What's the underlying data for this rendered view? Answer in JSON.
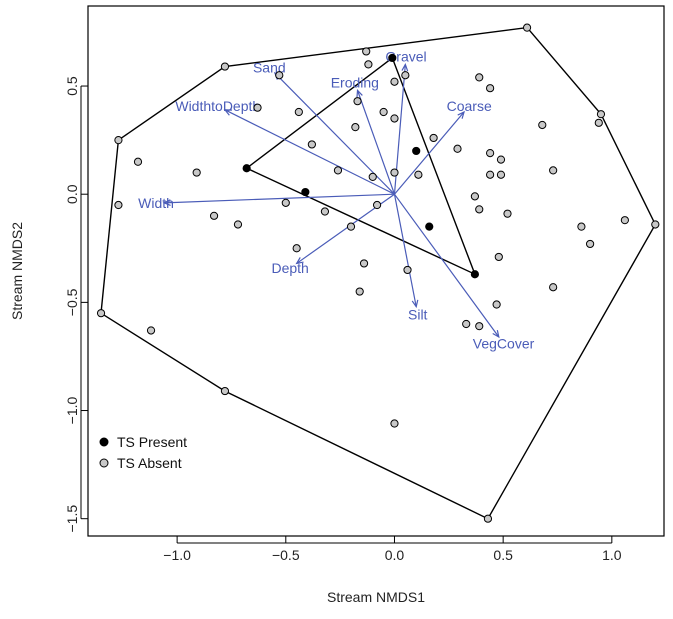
{
  "chart_data": {
    "type": "scatter",
    "title": "",
    "xlabel": "Stream NMDS1",
    "ylabel": "Stream NMDS2",
    "xlim": [
      -1.41,
      1.24
    ],
    "ylim": [
      -1.58,
      0.87
    ],
    "xticks": [
      -1.0,
      -0.5,
      0.0,
      0.5,
      1.0
    ],
    "xtick_labels": [
      "−1.0",
      "−0.5",
      "0.0",
      "0.5",
      "1.0"
    ],
    "yticks": [
      0.5,
      0.0,
      -0.5,
      -1.0,
      -1.5
    ],
    "ytick_labels": [
      "0.5",
      "0.0",
      "−0.5",
      "−1.0",
      "−1.5"
    ],
    "grid": false,
    "legend_position": "bottom-left",
    "colors": {
      "vectors": "#4a5cb8",
      "present": "#000000",
      "absent_fill": "#c8c8c8",
      "hull": "#000000"
    },
    "series": [
      {
        "name": "TS Present",
        "points": [
          [
            -0.68,
            0.12
          ],
          [
            -0.41,
            0.01
          ],
          [
            -0.01,
            0.63
          ],
          [
            0.1,
            0.2
          ],
          [
            0.16,
            -0.15
          ],
          [
            0.37,
            -0.37
          ]
        ]
      },
      {
        "name": "TS Absent",
        "points": [
          [
            -0.78,
            0.59
          ],
          [
            -1.27,
            0.25
          ],
          [
            -1.35,
            -0.55
          ],
          [
            -0.78,
            -0.91
          ],
          [
            0.43,
            -1.5
          ],
          [
            1.2,
            -0.14
          ],
          [
            0.95,
            0.37
          ],
          [
            0.61,
            0.77
          ],
          [
            -0.53,
            0.55
          ],
          [
            -0.63,
            0.4
          ],
          [
            -0.44,
            0.38
          ],
          [
            -0.38,
            0.23
          ],
          [
            -0.13,
            0.66
          ],
          [
            -0.12,
            0.6
          ],
          [
            0.0,
            0.52
          ],
          [
            -0.17,
            0.43
          ],
          [
            -0.18,
            0.31
          ],
          [
            -0.05,
            0.38
          ],
          [
            0.0,
            0.35
          ],
          [
            0.05,
            0.55
          ],
          [
            -0.26,
            0.11
          ],
          [
            -0.1,
            0.08
          ],
          [
            0.0,
            0.1
          ],
          [
            0.11,
            0.09
          ],
          [
            0.18,
            0.26
          ],
          [
            0.29,
            0.21
          ],
          [
            0.39,
            0.54
          ],
          [
            0.44,
            0.49
          ],
          [
            0.44,
            0.19
          ],
          [
            0.49,
            0.16
          ],
          [
            0.49,
            0.09
          ],
          [
            0.44,
            0.09
          ],
          [
            0.37,
            -0.01
          ],
          [
            0.39,
            -0.07
          ],
          [
            0.52,
            -0.09
          ],
          [
            0.48,
            -0.29
          ],
          [
            0.47,
            -0.51
          ],
          [
            0.39,
            -0.61
          ],
          [
            0.33,
            -0.6
          ],
          [
            0.73,
            0.11
          ],
          [
            0.68,
            0.32
          ],
          [
            0.86,
            -0.15
          ],
          [
            0.9,
            -0.23
          ],
          [
            0.94,
            0.33
          ],
          [
            1.06,
            -0.12
          ],
          [
            0.73,
            -0.43
          ],
          [
            -1.18,
            0.15
          ],
          [
            -0.91,
            0.1
          ],
          [
            -0.83,
            -0.1
          ],
          [
            -0.72,
            -0.14
          ],
          [
            -0.5,
            -0.04
          ],
          [
            -0.32,
            -0.08
          ],
          [
            -0.45,
            -0.25
          ],
          [
            -0.2,
            -0.15
          ],
          [
            -0.08,
            -0.05
          ],
          [
            -0.14,
            -0.32
          ],
          [
            -0.16,
            -0.45
          ],
          [
            0.06,
            -0.35
          ],
          [
            0.0,
            -1.06
          ],
          [
            -1.12,
            -0.63
          ],
          [
            -1.27,
            -0.05
          ]
        ]
      }
    ],
    "hulls": [
      {
        "series": "TS Absent",
        "vertices": [
          [
            0.61,
            0.77
          ],
          [
            0.95,
            0.37
          ],
          [
            1.2,
            -0.14
          ],
          [
            0.43,
            -1.5
          ],
          [
            -0.78,
            -0.91
          ],
          [
            -1.35,
            -0.55
          ],
          [
            -1.27,
            0.25
          ],
          [
            -0.78,
            0.59
          ]
        ]
      },
      {
        "series": "TS Present",
        "vertices": [
          [
            -0.01,
            0.63
          ],
          [
            0.37,
            -0.37
          ],
          [
            -0.68,
            0.12
          ]
        ]
      }
    ],
    "vectors": {
      "origin": [
        0.0,
        0.0
      ],
      "items": [
        {
          "name": "Sand",
          "x": -0.55,
          "y": 0.56
        },
        {
          "name": "Gravel",
          "x": 0.05,
          "y": 0.6
        },
        {
          "name": "Eroding",
          "x": -0.17,
          "y": 0.48
        },
        {
          "name": "WidthtoDepth",
          "x": -0.78,
          "y": 0.39
        },
        {
          "name": "Coarse",
          "x": 0.32,
          "y": 0.38
        },
        {
          "name": "Width",
          "x": -1.06,
          "y": -0.04
        },
        {
          "name": "Depth",
          "x": -0.45,
          "y": -0.32
        },
        {
          "name": "Silt",
          "x": 0.1,
          "y": -0.52
        },
        {
          "name": "VegCover",
          "x": 0.48,
          "y": -0.66
        }
      ]
    }
  }
}
